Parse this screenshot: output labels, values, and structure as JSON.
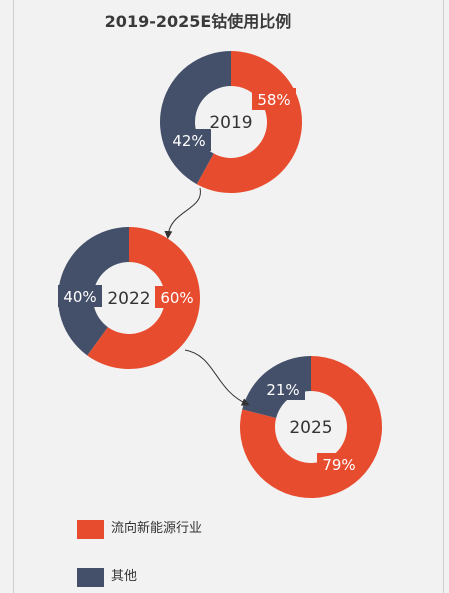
{
  "chart_data": {
    "type": "pie",
    "title": "2019-2025E钴使用比例",
    "colors": {
      "new_energy": "#e84c2f",
      "other": "#44506a"
    },
    "legend": [
      {
        "name": "流向新能源行业",
        "color": "#e84c2f"
      },
      {
        "name": "其他",
        "color": "#44506a"
      }
    ],
    "charts": [
      {
        "year": "2019",
        "slices": [
          {
            "name": "流向新能源行业",
            "value": 58,
            "label": "58%"
          },
          {
            "name": "其他",
            "value": 42,
            "label": "42%"
          }
        ]
      },
      {
        "year": "2022",
        "slices": [
          {
            "name": "流向新能源行业",
            "value": 60,
            "label": "60%"
          },
          {
            "name": "其他",
            "value": 40,
            "label": "40%"
          }
        ]
      },
      {
        "year": "2025",
        "slices": [
          {
            "name": "流向新能源行业",
            "value": 79,
            "label": "79%"
          },
          {
            "name": "其他",
            "value": 21,
            "label": "21%"
          }
        ]
      }
    ],
    "legend_position": "bottom-left"
  }
}
